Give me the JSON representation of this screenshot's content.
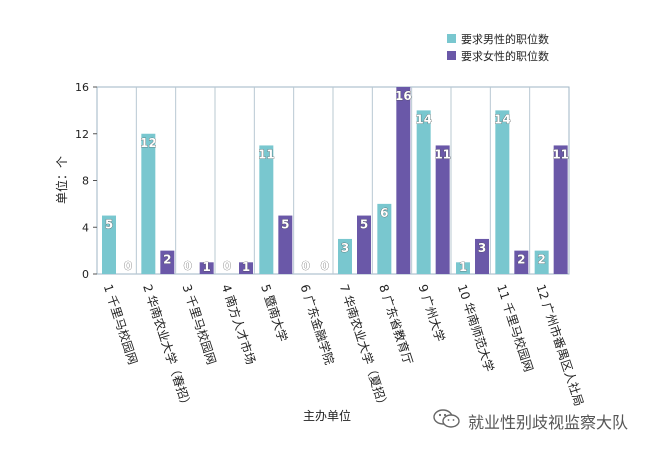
{
  "chart_data": {
    "type": "bar",
    "categories": [
      "1 千里马校园网",
      "2 华南农业大学（春招）",
      "3 千里马校园网",
      "4 南方人才市场",
      "5 暨南大学",
      "6 广东金融学院",
      "7 华南农业大学（夏招）",
      "8 广东省教育厅",
      "9 广州大学",
      "10 华南师范大学",
      "11 千里马校园网",
      "12 广州市番禺区人社局"
    ],
    "series": [
      {
        "name": "要求男性的职位数",
        "color": "#79c7cf",
        "values": [
          5,
          12,
          0,
          0,
          11,
          0,
          3,
          6,
          14,
          1,
          14,
          2
        ]
      },
      {
        "name": "要求女性的职位数",
        "color": "#6a58a8",
        "values": [
          0,
          2,
          1,
          1,
          5,
          0,
          5,
          16,
          11,
          3,
          2,
          11
        ]
      }
    ],
    "ylim": [
      0,
      16
    ],
    "yticks": [
      0,
      4,
      8,
      12,
      16
    ],
    "ylabel": "单位：个",
    "xlabel": "主办单位",
    "grid": "vertical separators between categories",
    "legend_position": "top-right"
  },
  "watermark": {
    "icon": "wechat-icon",
    "text": "就业性别歧视监察大队"
  }
}
